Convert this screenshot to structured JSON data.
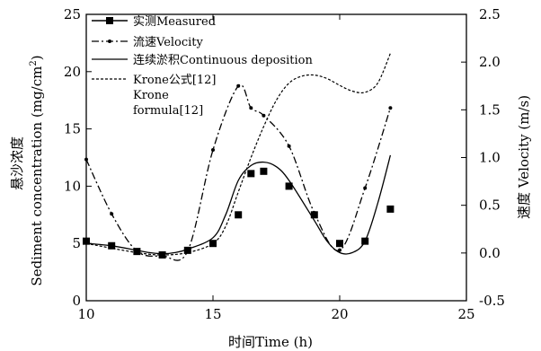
{
  "chart_data": {
    "type": "line",
    "xlabel": "时间Time (h)",
    "ylabel_lines": [
      "悬沙浓度",
      "Sediment concentration  (mg/cm",
      "2",
      ")"
    ],
    "y2label": "速度 Velocity (m/s)",
    "xlim": [
      10,
      25
    ],
    "ylim": [
      0,
      25
    ],
    "y2lim": [
      -0.5,
      2.5
    ],
    "x_ticks": [
      "10",
      "15",
      "20",
      "25"
    ],
    "y_ticks": [
      "0",
      "5",
      "10",
      "15",
      "20",
      "25"
    ],
    "y2_ticks": [
      "-0.5",
      "0.0",
      "0.5",
      "1.0",
      "1.5",
      "2.0",
      "2.5"
    ],
    "legend_position": "top-left",
    "series": [
      {
        "name": "实测Measured",
        "style": "square-markers",
        "axis": "left",
        "x": [
          10,
          11,
          12,
          13,
          14,
          15,
          16,
          16.5,
          17,
          18,
          19,
          20,
          21,
          22
        ],
        "y": [
          5.2,
          4.8,
          4.3,
          4.0,
          4.4,
          5.0,
          7.5,
          11.1,
          11.3,
          10.0,
          7.5,
          5.0,
          5.2,
          8.0
        ]
      },
      {
        "name": "流速Velocity",
        "style": "dash-dot-with-dots",
        "axis": "right",
        "x": [
          10,
          11,
          12,
          13,
          14,
          15,
          16,
          16.5,
          17,
          18,
          19,
          20,
          21,
          22
        ],
        "y": [
          0.98,
          0.41,
          0.02,
          -0.03,
          0.02,
          1.08,
          1.75,
          1.52,
          1.44,
          1.12,
          0.42,
          0.03,
          0.68,
          1.52
        ]
      },
      {
        "name": "连续淤积Continuous deposition",
        "style": "solid",
        "axis": "left",
        "x": [
          10,
          11,
          12,
          12.5,
          13,
          13.5,
          14,
          15,
          15.5,
          16,
          16.5,
          17,
          17.5,
          18,
          19,
          19.5,
          20,
          20.5,
          21,
          21.5,
          22
        ],
        "y": [
          5.0,
          4.8,
          4.4,
          4.2,
          4.1,
          4.2,
          4.5,
          5.5,
          7.5,
          10.5,
          11.8,
          12.1,
          11.7,
          10.5,
          7.0,
          5.2,
          4.2,
          4.2,
          5.2,
          8.5,
          12.7
        ]
      },
      {
        "name": "Krone公式[12]",
        "style": "dashed",
        "axis": "left",
        "x": [
          10,
          12,
          13,
          14,
          15,
          15.5,
          16,
          16.5,
          17,
          17.5,
          18,
          18.5,
          19,
          19.5,
          20,
          20.5,
          21,
          21.5,
          22
        ],
        "y": [
          5.0,
          4.2,
          4.0,
          4.2,
          5.0,
          6.5,
          9.5,
          12.5,
          15.2,
          17.5,
          19.0,
          19.6,
          19.7,
          19.4,
          18.8,
          18.3,
          18.2,
          19.0,
          21.6
        ]
      }
    ],
    "legend_extra_lines": [
      "Krone",
      "formula[12]"
    ]
  }
}
